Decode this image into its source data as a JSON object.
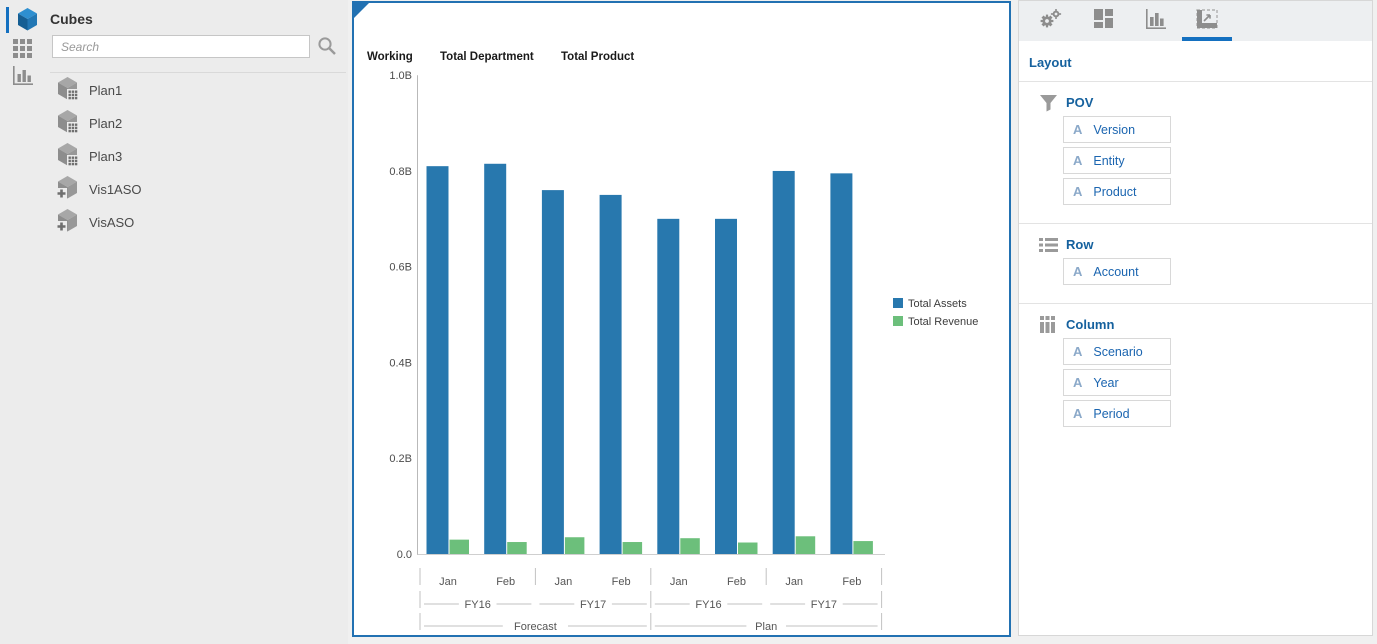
{
  "left_panel": {
    "title": "Cubes",
    "search": {
      "placeholder": "Search"
    },
    "cubes": [
      {
        "label": "Plan1",
        "type": "plan"
      },
      {
        "label": "Plan2",
        "type": "plan"
      },
      {
        "label": "Plan3",
        "type": "plan"
      },
      {
        "label": "Vis1ASO",
        "type": "aso"
      },
      {
        "label": "VisASO",
        "type": "aso"
      }
    ]
  },
  "chart_panel": {
    "pov_labels": [
      "Working",
      "Total Department",
      "Total Product"
    ]
  },
  "chart_data": {
    "type": "bar",
    "title": "",
    "categories": [
      "Jan",
      "Feb",
      "Jan",
      "Feb",
      "Jan",
      "Feb",
      "Jan",
      "Feb"
    ],
    "hierarchy": {
      "years": [
        "FY16",
        "FY17",
        "FY16",
        "FY17"
      ],
      "scenarios": [
        "Forecast",
        "Plan"
      ]
    },
    "series": [
      {
        "name": "Total Assets",
        "color": "#2878ae",
        "values": [
          0.81,
          0.815,
          0.76,
          0.75,
          0.7,
          0.7,
          0.8,
          0.795
        ]
      },
      {
        "name": "Total Revenue",
        "color": "#6cbf7b",
        "values": [
          0.03,
          0.025,
          0.035,
          0.025,
          0.033,
          0.024,
          0.037,
          0.027
        ]
      }
    ],
    "xlabel": "",
    "ylabel": "",
    "ylim": [
      0,
      1.0
    ],
    "yticks": [
      "0.0",
      "0.2B",
      "0.4B",
      "0.6B",
      "0.8B",
      "1.0B"
    ],
    "legend_position": "right",
    "grid": false
  },
  "right_panel": {
    "title": "Layout",
    "field_glyph": "A",
    "tabs": [
      {
        "name": "settings",
        "icon": "gears-icon",
        "selected": false
      },
      {
        "name": "tiles",
        "icon": "tiles-icon",
        "selected": false
      },
      {
        "name": "chart",
        "icon": "bar-chart-icon",
        "selected": false
      },
      {
        "name": "layout",
        "icon": "layout-icon",
        "selected": true
      }
    ],
    "sections": [
      {
        "title": "POV",
        "icon": "filter-icon",
        "fields": [
          "Version",
          "Entity",
          "Product"
        ]
      },
      {
        "title": "Row",
        "icon": "rows-icon",
        "fields": [
          "Account"
        ]
      },
      {
        "title": "Column",
        "icon": "columns-icon",
        "fields": [
          "Scenario",
          "Year",
          "Period"
        ]
      }
    ]
  },
  "colors": {
    "selection_blue": "#2271b2",
    "accent_blue": "#1470c0",
    "link_blue": "#1b65b0",
    "title_blue": "#15619e"
  }
}
